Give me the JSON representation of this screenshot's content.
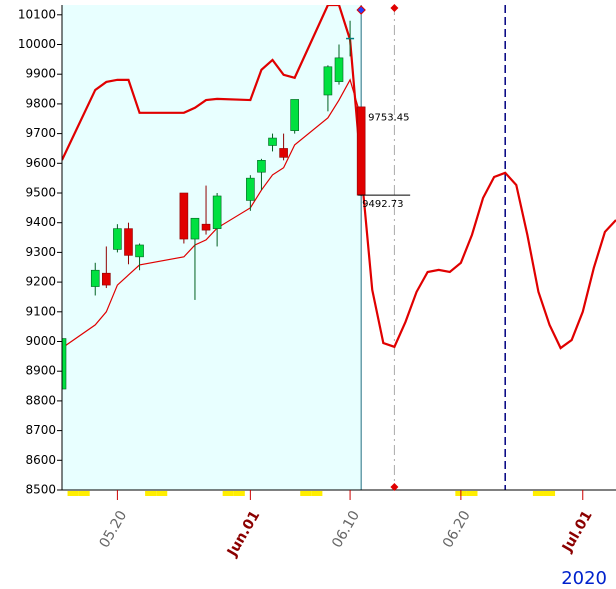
{
  "chart_data": {
    "type": "candlestick",
    "year": "2020",
    "xlim": [
      "05.15",
      "07.04"
    ],
    "ylim": [
      8500,
      10133
    ],
    "yticks": [
      8500,
      8600,
      8700,
      8800,
      8900,
      9000,
      9100,
      9200,
      9300,
      9400,
      9500,
      9600,
      9700,
      9800,
      9900,
      10000,
      10100
    ],
    "xticks": [
      "05.20",
      {
        "value": "06.01",
        "label": "Jun.01"
      },
      "06.10",
      "06.20",
      {
        "value": "07.01",
        "label": "Jul.01"
      }
    ],
    "xtick_label_colors": [
      "#666666",
      "#8b0000",
      "#666666",
      "#666666",
      "#8b0000"
    ],
    "up_color": "#00e040",
    "down_color": "#e00000",
    "current_date": "06.11",
    "current_background": "#e8ffff",
    "highlighted_days": [
      "05.16",
      "05.17",
      "05.23",
      "05.24",
      "05.30",
      "05.31",
      "06.06",
      "06.07",
      "06.20",
      "06.21",
      "06.27",
      "06.28"
    ],
    "highlight_color": "#ffee00",
    "gray_marker_date": "06.14",
    "blue_marker_date": "06.24",
    "candles": [
      {
        "date": "05.15",
        "open": 8840,
        "high": 9015,
        "low": 8790,
        "close": 9010
      },
      {
        "date": "05.18",
        "open": 9185,
        "high": 9265,
        "low": 9155,
        "close": 9240
      },
      {
        "date": "05.19",
        "open": 9230,
        "high": 9320,
        "low": 9180,
        "close": 9190
      },
      {
        "date": "05.20",
        "open": 9310,
        "high": 9395,
        "low": 9300,
        "close": 9380
      },
      {
        "date": "05.21",
        "open": 9380,
        "high": 9400,
        "low": 9260,
        "close": 9290
      },
      {
        "date": "05.22",
        "open": 9285,
        "high": 9330,
        "low": 9240,
        "close": 9325
      },
      {
        "date": "05.26",
        "open": 9500,
        "high": 9500,
        "low": 9330,
        "close": 9345
      },
      {
        "date": "05.27",
        "open": 9345,
        "high": 9415,
        "low": 9140,
        "close": 9415
      },
      {
        "date": "05.28",
        "open": 9395,
        "high": 9525,
        "low": 9360,
        "close": 9375
      },
      {
        "date": "05.29",
        "open": 9380,
        "high": 9500,
        "low": 9320,
        "close": 9490
      },
      {
        "date": "06.01",
        "open": 9475,
        "high": 9560,
        "low": 9440,
        "close": 9550
      },
      {
        "date": "06.02",
        "open": 9570,
        "high": 9615,
        "low": 9510,
        "close": 9610
      },
      {
        "date": "06.03",
        "open": 9660,
        "high": 9700,
        "low": 9640,
        "close": 9685
      },
      {
        "date": "06.04",
        "open": 9650,
        "high": 9700,
        "low": 9610,
        "close": 9620
      },
      {
        "date": "06.05",
        "open": 9710,
        "high": 9815,
        "low": 9700,
        "close": 9815
      },
      {
        "date": "06.08",
        "open": 9830,
        "high": 9930,
        "low": 9775,
        "close": 9925
      },
      {
        "date": "06.09",
        "open": 9875,
        "high": 10000,
        "low": 9865,
        "close": 9955
      },
      {
        "date": "06.10",
        "open": 10020,
        "high": 10080,
        "low": 9960,
        "close": 10020
      },
      {
        "date": "06.11",
        "open": 9790,
        "high": 9790,
        "low": 9490,
        "close": 9492.73
      }
    ],
    "lines": [
      {
        "color": "#e00000",
        "width": 2.2,
        "x": [
          "05.15",
          "05.18",
          "05.19",
          "05.20",
          "05.21",
          "05.22",
          "05.26",
          "05.27",
          "05.28",
          "05.29",
          "06.01",
          "06.02",
          "06.03",
          "06.04",
          "06.05",
          "06.08",
          "06.09",
          "06.10",
          "06.11",
          "06.12",
          "06.13",
          "06.14",
          "06.15",
          "06.16",
          "06.17",
          "06.18",
          "06.19",
          "06.20",
          "06.21",
          "06.22",
          "06.23",
          "06.24",
          "06.25",
          "06.26",
          "06.27",
          "06.28",
          "06.29",
          "06.30",
          "07.01",
          "07.02",
          "07.03",
          "07.04"
        ],
        "values": [
          9611,
          9847,
          9874,
          9881,
          9881,
          9770,
          9770,
          9787,
          9813,
          9817,
          9813,
          9915,
          9948,
          9898,
          9888,
          10133,
          10133,
          10016,
          9578,
          9174,
          8995,
          8982,
          9066,
          9167,
          9234,
          9241,
          9234,
          9265,
          9359,
          9483,
          9554,
          9568,
          9527,
          9359,
          9167,
          9056,
          8978,
          9005,
          9100,
          9248,
          9369,
          9409
        ]
      },
      {
        "color": "#e00000",
        "width": 1.2,
        "x": [
          "05.15",
          "05.18",
          "05.19",
          "05.20",
          "05.21",
          "05.22",
          "05.26",
          "05.27",
          "05.28",
          "05.29",
          "06.01",
          "06.02",
          "06.03",
          "06.04",
          "06.05",
          "06.08",
          "06.09",
          "06.10",
          "06.11"
        ],
        "values": [
          8978,
          9056,
          9100,
          9190,
          9224,
          9258,
          9285,
          9325,
          9342,
          9382,
          9450,
          9510,
          9561,
          9585,
          9662,
          9753,
          9813,
          9881,
          9753.45
        ]
      }
    ],
    "annotations": [
      {
        "value": 9753.45
      },
      {
        "value": 9492.73
      }
    ]
  }
}
